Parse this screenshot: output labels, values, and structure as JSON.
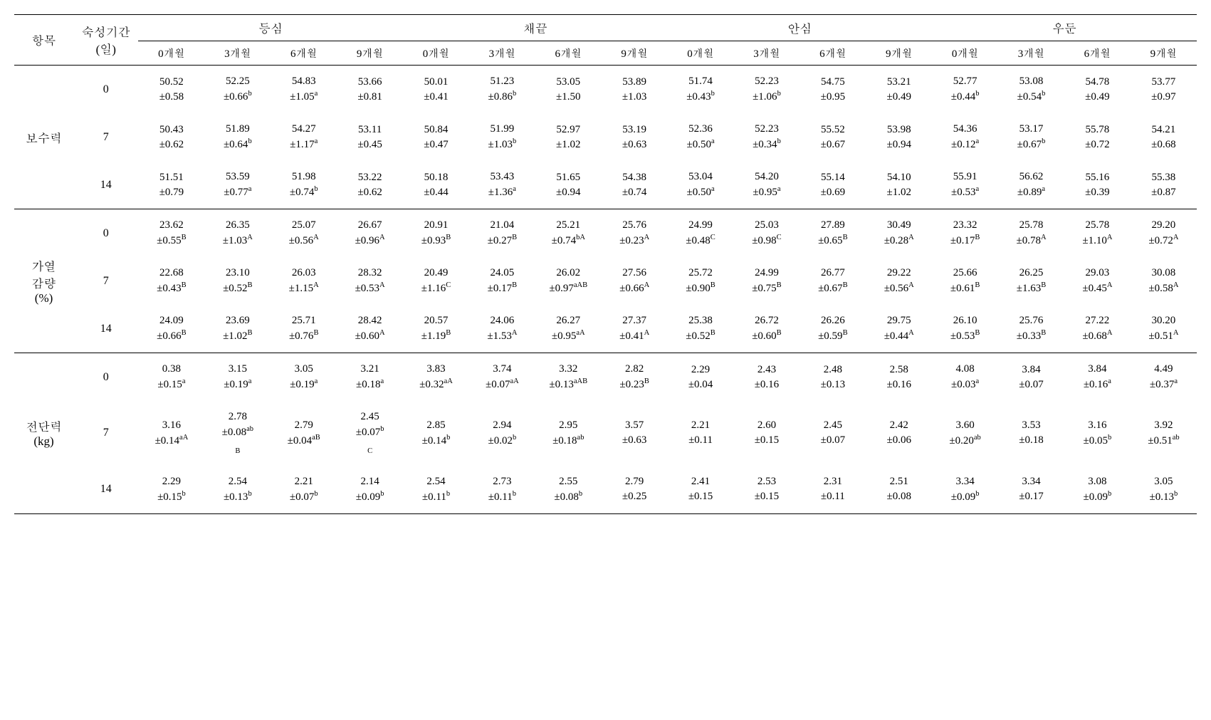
{
  "headers": {
    "item": "항목",
    "period": "숙성기간\n(일)",
    "groups": [
      "등심",
      "채끝",
      "안심",
      "우둔"
    ],
    "subs": [
      "0개월",
      "3개월",
      "6개월",
      "9개월"
    ]
  },
  "sections": [
    {
      "label": "보수력",
      "rows": [
        {
          "day": "0",
          "cells": [
            {
              "v": "50.52",
              "e": "±0.58",
              "s": ""
            },
            {
              "v": "52.25",
              "e": "±0.66",
              "s": "b"
            },
            {
              "v": "54.83",
              "e": "±1.05",
              "s": "a"
            },
            {
              "v": "53.66",
              "e": "±0.81",
              "s": ""
            },
            {
              "v": "50.01",
              "e": "±0.41",
              "s": ""
            },
            {
              "v": "51.23",
              "e": "±0.86",
              "s": "b"
            },
            {
              "v": "53.05",
              "e": "±1.50",
              "s": ""
            },
            {
              "v": "53.89",
              "e": "±1.03",
              "s": ""
            },
            {
              "v": "51.74",
              "e": "±0.43",
              "s": "b"
            },
            {
              "v": "52.23",
              "e": "±1.06",
              "s": "b"
            },
            {
              "v": "54.75",
              "e": "±0.95",
              "s": ""
            },
            {
              "v": "53.21",
              "e": "±0.49",
              "s": ""
            },
            {
              "v": "52.77",
              "e": "±0.44",
              "s": "b"
            },
            {
              "v": "53.08",
              "e": "±0.54",
              "s": "b"
            },
            {
              "v": "54.78",
              "e": "±0.49",
              "s": ""
            },
            {
              "v": "53.77",
              "e": "±0.97",
              "s": ""
            }
          ]
        },
        {
          "day": "7",
          "cells": [
            {
              "v": "50.43",
              "e": "±0.62",
              "s": ""
            },
            {
              "v": "51.89",
              "e": "±0.64",
              "s": "b"
            },
            {
              "v": "54.27",
              "e": "±1.17",
              "s": "a"
            },
            {
              "v": "53.11",
              "e": "±0.45",
              "s": ""
            },
            {
              "v": "50.84",
              "e": "±0.47",
              "s": ""
            },
            {
              "v": "51.99",
              "e": "±1.03",
              "s": "b"
            },
            {
              "v": "52.97",
              "e": "±1.02",
              "s": ""
            },
            {
              "v": "53.19",
              "e": "±0.63",
              "s": ""
            },
            {
              "v": "52.36",
              "e": "±0.50",
              "s": "a"
            },
            {
              "v": "52.23",
              "e": "±0.34",
              "s": "b"
            },
            {
              "v": "55.52",
              "e": "±0.67",
              "s": ""
            },
            {
              "v": "53.98",
              "e": "±0.94",
              "s": ""
            },
            {
              "v": "54.36",
              "e": "±0.12",
              "s": "a"
            },
            {
              "v": "53.17",
              "e": "±0.67",
              "s": "b"
            },
            {
              "v": "55.78",
              "e": "±0.72",
              "s": ""
            },
            {
              "v": "54.21",
              "e": "±0.68",
              "s": ""
            }
          ]
        },
        {
          "day": "14",
          "cells": [
            {
              "v": "51.51",
              "e": "±0.79",
              "s": ""
            },
            {
              "v": "53.59",
              "e": "±0.77",
              "s": "a"
            },
            {
              "v": "51.98",
              "e": "±0.74",
              "s": "b"
            },
            {
              "v": "53.22",
              "e": "±0.62",
              "s": ""
            },
            {
              "v": "50.18",
              "e": "±0.44",
              "s": ""
            },
            {
              "v": "53.43",
              "e": "±1.36",
              "s": "a"
            },
            {
              "v": "51.65",
              "e": "±0.94",
              "s": ""
            },
            {
              "v": "54.38",
              "e": "±0.74",
              "s": ""
            },
            {
              "v": "53.04",
              "e": "±0.50",
              "s": "a"
            },
            {
              "v": "54.20",
              "e": "±0.95",
              "s": "a"
            },
            {
              "v": "55.14",
              "e": "±0.69",
              "s": ""
            },
            {
              "v": "54.10",
              "e": "±1.02",
              "s": ""
            },
            {
              "v": "55.91",
              "e": "±0.53",
              "s": "a"
            },
            {
              "v": "56.62",
              "e": "±0.89",
              "s": "a"
            },
            {
              "v": "55.16",
              "e": "±0.39",
              "s": ""
            },
            {
              "v": "55.38",
              "e": "±0.87",
              "s": ""
            }
          ]
        }
      ]
    },
    {
      "label": "가열\n감량\n(%)",
      "rows": [
        {
          "day": "0",
          "cells": [
            {
              "v": "23.62",
              "e": "±0.55",
              "s": "B"
            },
            {
              "v": "26.35",
              "e": "±1.03",
              "s": "A"
            },
            {
              "v": "25.07",
              "e": "±0.56",
              "s": "A"
            },
            {
              "v": "26.67",
              "e": "±0.96",
              "s": "A"
            },
            {
              "v": "20.91",
              "e": "±0.93",
              "s": "B"
            },
            {
              "v": "21.04",
              "e": "±0.27",
              "s": "B"
            },
            {
              "v": "25.21",
              "e": "±0.74",
              "s": "bA"
            },
            {
              "v": "25.76",
              "e": "±0.23",
              "s": "A"
            },
            {
              "v": "24.99",
              "e": "±0.48",
              "s": "C"
            },
            {
              "v": "25.03",
              "e": "±0.98",
              "s": "C"
            },
            {
              "v": "27.89",
              "e": "±0.65",
              "s": "B"
            },
            {
              "v": "30.49",
              "e": "±0.28",
              "s": "A"
            },
            {
              "v": "23.32",
              "e": "±0.17",
              "s": "B"
            },
            {
              "v": "25.78",
              "e": "±0.78",
              "s": "A"
            },
            {
              "v": "25.78",
              "e": "±1.10",
              "s": "A"
            },
            {
              "v": "29.20",
              "e": "±0.72",
              "s": "A"
            }
          ]
        },
        {
          "day": "7",
          "cells": [
            {
              "v": "22.68",
              "e": "±0.43",
              "s": "B"
            },
            {
              "v": "23.10",
              "e": "±0.52",
              "s": "B"
            },
            {
              "v": "26.03",
              "e": "±1.15",
              "s": "A"
            },
            {
              "v": "28.32",
              "e": "±0.53",
              "s": "A"
            },
            {
              "v": "20.49",
              "e": "±1.16",
              "s": "C"
            },
            {
              "v": "24.05",
              "e": "±0.17",
              "s": "B"
            },
            {
              "v": "26.02",
              "e": "±0.97",
              "s": "aAB"
            },
            {
              "v": "27.56",
              "e": "±0.66",
              "s": "A"
            },
            {
              "v": "25.72",
              "e": "±0.90",
              "s": "B"
            },
            {
              "v": "24.99",
              "e": "±0.75",
              "s": "B"
            },
            {
              "v": "26.77",
              "e": "±0.67",
              "s": "B"
            },
            {
              "v": "29.22",
              "e": "±0.56",
              "s": "A"
            },
            {
              "v": "25.66",
              "e": "±0.61",
              "s": "B"
            },
            {
              "v": "26.25",
              "e": "±1.63",
              "s": "B"
            },
            {
              "v": "29.03",
              "e": "±0.45",
              "s": "A"
            },
            {
              "v": "30.08",
              "e": "±0.58",
              "s": "A"
            }
          ]
        },
        {
          "day": "14",
          "cells": [
            {
              "v": "24.09",
              "e": "±0.66",
              "s": "B"
            },
            {
              "v": "23.69",
              "e": "±1.02",
              "s": "B"
            },
            {
              "v": "25.71",
              "e": "±0.76",
              "s": "B"
            },
            {
              "v": "28.42",
              "e": "±0.60",
              "s": "A"
            },
            {
              "v": "20.57",
              "e": "±1.19",
              "s": "B"
            },
            {
              "v": "24.06",
              "e": "±1.53",
              "s": "A"
            },
            {
              "v": "26.27",
              "e": "±0.95",
              "s": "aA"
            },
            {
              "v": "27.37",
              "e": "±0.41",
              "s": "A"
            },
            {
              "v": "25.38",
              "e": "±0.52",
              "s": "B"
            },
            {
              "v": "26.72",
              "e": "±0.60",
              "s": "B"
            },
            {
              "v": "26.26",
              "e": "±0.59",
              "s": "B"
            },
            {
              "v": "29.75",
              "e": "±0.44",
              "s": "A"
            },
            {
              "v": "26.10",
              "e": "±0.53",
              "s": "B"
            },
            {
              "v": "25.76",
              "e": "±0.33",
              "s": "B"
            },
            {
              "v": "27.22",
              "e": "±0.68",
              "s": "A"
            },
            {
              "v": "30.20",
              "e": "±0.51",
              "s": "A"
            }
          ]
        }
      ]
    },
    {
      "label": "전단력\n(kg)",
      "rows": [
        {
          "day": "0",
          "cells": [
            {
              "v": "0.38",
              "e": "±0.15",
              "s": "a"
            },
            {
              "v": "3.15",
              "e": "±0.19",
              "s": "a"
            },
            {
              "v": "3.05",
              "e": "±0.19",
              "s": "a"
            },
            {
              "v": "3.21",
              "e": "±0.18",
              "s": "a"
            },
            {
              "v": "3.83",
              "e": "±0.32",
              "s": "aA"
            },
            {
              "v": "3.74",
              "e": "±0.07",
              "s": "aA"
            },
            {
              "v": "3.32",
              "e": "±0.13",
              "s": "aAB"
            },
            {
              "v": "2.82",
              "e": "±0.23",
              "s": "B"
            },
            {
              "v": "2.29",
              "e": "±0.04",
              "s": ""
            },
            {
              "v": "2.43",
              "e": "±0.16",
              "s": ""
            },
            {
              "v": "2.48",
              "e": "±0.13",
              "s": ""
            },
            {
              "v": "2.58",
              "e": "±0.16",
              "s": ""
            },
            {
              "v": "4.08",
              "e": "±0.03",
              "s": "a"
            },
            {
              "v": "3.84",
              "e": "±0.07",
              "s": ""
            },
            {
              "v": "3.84",
              "e": "±0.16",
              "s": "a"
            },
            {
              "v": "4.49",
              "e": "±0.37",
              "s": "a"
            }
          ]
        },
        {
          "day": "7",
          "cells": [
            {
              "v": "3.16",
              "e": "±0.14",
              "s": "aA"
            },
            {
              "v": "2.78",
              "e": "±0.08",
              "s": "ab\nB"
            },
            {
              "v": "2.79",
              "e": "±0.04",
              "s": "aB"
            },
            {
              "v": "2.45",
              "e": "±0.07",
              "s": "b\nC"
            },
            {
              "v": "2.85",
              "e": "±0.14",
              "s": "b"
            },
            {
              "v": "2.94",
              "e": "±0.02",
              "s": "b"
            },
            {
              "v": "2.95",
              "e": "±0.18",
              "s": "ab"
            },
            {
              "v": "3.57",
              "e": "±0.63",
              "s": ""
            },
            {
              "v": "2.21",
              "e": "±0.11",
              "s": ""
            },
            {
              "v": "2.60",
              "e": "±0.15",
              "s": ""
            },
            {
              "v": "2.45",
              "e": "±0.07",
              "s": ""
            },
            {
              "v": "2.42",
              "e": "±0.06",
              "s": ""
            },
            {
              "v": "3.60",
              "e": "±0.20",
              "s": "ab"
            },
            {
              "v": "3.53",
              "e": "±0.18",
              "s": ""
            },
            {
              "v": "3.16",
              "e": "±0.05",
              "s": "b"
            },
            {
              "v": "3.92",
              "e": "±0.51",
              "s": "ab"
            }
          ]
        },
        {
          "day": "14",
          "cells": [
            {
              "v": "2.29",
              "e": "±0.15",
              "s": "b"
            },
            {
              "v": "2.54",
              "e": "±0.13",
              "s": "b"
            },
            {
              "v": "2.21",
              "e": "±0.07",
              "s": "b"
            },
            {
              "v": "2.14",
              "e": "±0.09",
              "s": "b"
            },
            {
              "v": "2.54",
              "e": "±0.11",
              "s": "b"
            },
            {
              "v": "2.73",
              "e": "±0.11",
              "s": "b"
            },
            {
              "v": "2.55",
              "e": "±0.08",
              "s": "b"
            },
            {
              "v": "2.79",
              "e": "±0.25",
              "s": ""
            },
            {
              "v": "2.41",
              "e": "±0.15",
              "s": ""
            },
            {
              "v": "2.53",
              "e": "±0.15",
              "s": ""
            },
            {
              "v": "2.31",
              "e": "±0.11",
              "s": ""
            },
            {
              "v": "2.51",
              "e": "±0.08",
              "s": ""
            },
            {
              "v": "3.34",
              "e": "±0.09",
              "s": "b"
            },
            {
              "v": "3.34",
              "e": "±0.17",
              "s": ""
            },
            {
              "v": "3.08",
              "e": "±0.09",
              "s": "b"
            },
            {
              "v": "3.05",
              "e": "±0.13",
              "s": "b"
            }
          ]
        }
      ]
    }
  ]
}
